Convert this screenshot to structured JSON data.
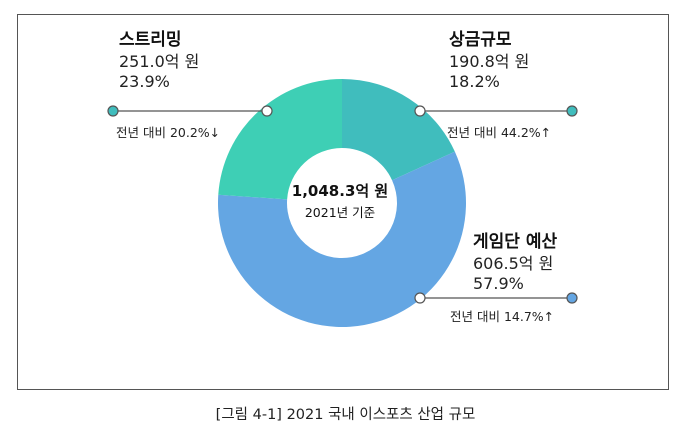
{
  "chart_data": {
    "type": "donut",
    "unit": "억 원",
    "total_label": "1,048.3억 원",
    "basis_label": "2021년 기준",
    "segments": [
      {
        "name": "상금규모",
        "value": 190.8,
        "value_label": "190.8억 원",
        "percent": 18.2,
        "percent_label": "18.2%",
        "yoy_label": "전년 대비 44.2%↑",
        "color": "#40bdbd"
      },
      {
        "name": "게임단 예산",
        "value": 606.5,
        "value_label": "606.5억 원",
        "percent": 57.9,
        "percent_label": "57.9%",
        "yoy_label": "전년 대비 14.7%↑",
        "color": "#64a6e3"
      },
      {
        "name": "스트리밍",
        "value": 251.0,
        "value_label": "251.0억 원",
        "percent": 23.9,
        "percent_label": "23.9%",
        "yoy_label": "전년 대비 20.2%↓",
        "color": "#3ecfb5"
      }
    ]
  },
  "caption": "[그림 4-1] 2021 국내 이스포츠 산업 규모",
  "colors": {
    "leader_line": "#555555",
    "endpoint_fill": "#40bdbd",
    "blue_endpoint_fill": "#64a6e3"
  }
}
